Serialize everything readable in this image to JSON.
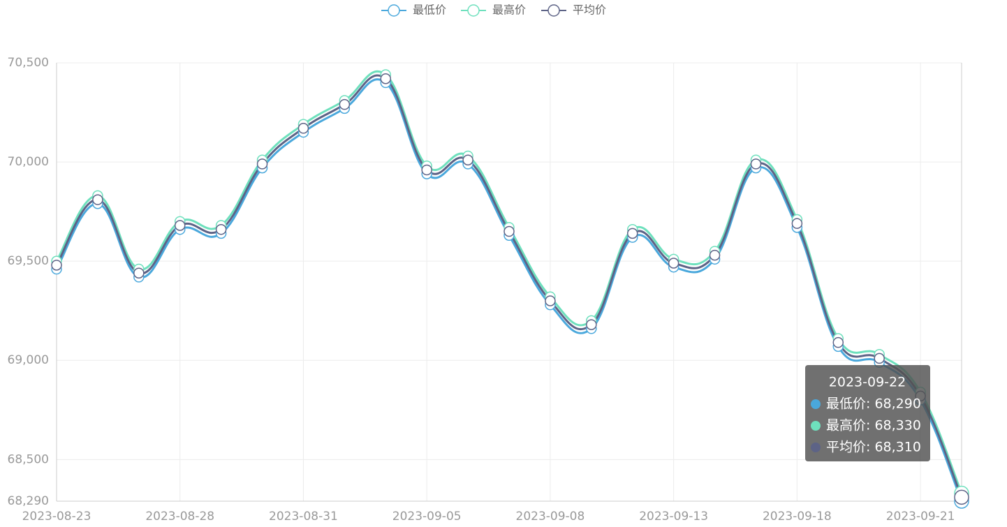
{
  "chart_data": {
    "type": "line",
    "categories": [
      "2023-08-23",
      null,
      null,
      "2023-08-28",
      null,
      null,
      "2023-08-31",
      null,
      null,
      "2023-09-05",
      null,
      null,
      "2023-09-08",
      null,
      null,
      "2023-09-13",
      null,
      null,
      "2023-09-18",
      null,
      null,
      "2023-09-21",
      null
    ],
    "series": [
      {
        "name": "最低价",
        "color": "#4aa8dc",
        "values": [
          69460,
          69790,
          69420,
          69660,
          69640,
          69970,
          70150,
          70270,
          70400,
          69940,
          69990,
          69630,
          69280,
          69160,
          69620,
          69470,
          69510,
          69970,
          69670,
          69070,
          68990,
          68800,
          68290
        ]
      },
      {
        "name": "最高价",
        "color": "#6ee0bd",
        "values": [
          69500,
          69830,
          69460,
          69700,
          69680,
          70010,
          70190,
          70310,
          70440,
          69980,
          70030,
          69670,
          69320,
          69200,
          69660,
          69510,
          69550,
          70010,
          69710,
          69110,
          69030,
          68840,
          68330
        ]
      },
      {
        "name": "平均价",
        "color": "#5d6386",
        "values": [
          69480,
          69810,
          69440,
          69680,
          69660,
          69990,
          70170,
          70290,
          70420,
          69960,
          70010,
          69650,
          69300,
          69180,
          69640,
          69490,
          69530,
          69990,
          69690,
          69090,
          69010,
          68820,
          68310
        ]
      }
    ],
    "ylim": [
      68290,
      70500
    ],
    "yticks": [
      {
        "value": 68290,
        "label": "68,290"
      },
      {
        "value": 68500,
        "label": "68,500"
      },
      {
        "value": 69000,
        "label": "69,000"
      },
      {
        "value": 69500,
        "label": "69,500"
      },
      {
        "value": 70000,
        "label": "70,000"
      },
      {
        "value": 70500,
        "label": "70,500"
      }
    ],
    "grid": true,
    "legend": "top",
    "tooltip": {
      "title": "2023-09-22",
      "rows": [
        "最低价: 68,290",
        "最高价: 68,330",
        "平均价: 68,310"
      ]
    }
  }
}
